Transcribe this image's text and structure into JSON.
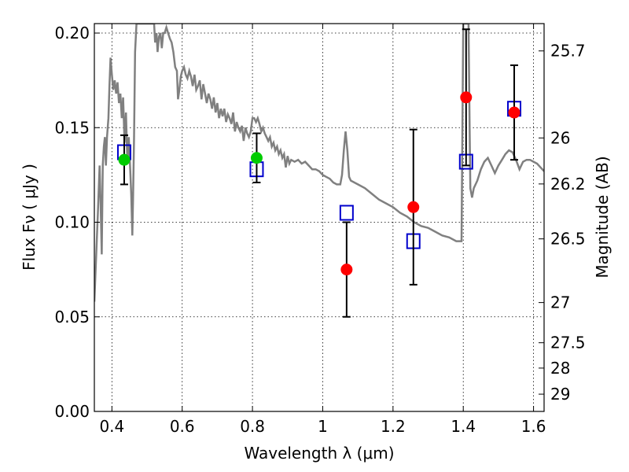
{
  "chart_data": {
    "type": "scatter",
    "xlabel": "Wavelength  λ (μm)",
    "ylabel": "Flux  Fν  ( μJy )",
    "y2label": "Magnitude (AB)",
    "xlim": [
      0.35,
      1.63
    ],
    "ylim": [
      0.0,
      0.205
    ],
    "xticks": [
      {
        "value": 0.4,
        "label": "0.4"
      },
      {
        "value": 0.6,
        "label": "0.6"
      },
      {
        "value": 0.8,
        "label": "0.8"
      },
      {
        "value": 1.0,
        "label": "1"
      },
      {
        "value": 1.2,
        "label": "1.2"
      },
      {
        "value": 1.4,
        "label": "1.4"
      },
      {
        "value": 1.6,
        "label": "1.6"
      }
    ],
    "yticks": [
      {
        "value": 0.0,
        "label": "0.00"
      },
      {
        "value": 0.05,
        "label": "0.05"
      },
      {
        "value": 0.1,
        "label": "0.10"
      },
      {
        "value": 0.15,
        "label": "0.15"
      },
      {
        "value": 0.2,
        "label": "0.20"
      }
    ],
    "y2ticks": [
      "25.7",
      "26",
      "26.2",
      "26.5",
      "27",
      "27.5",
      "28",
      "29"
    ],
    "grid": true,
    "series": [
      {
        "kind": "line",
        "color": "#808080",
        "points": [
          [
            0.35,
            0.058
          ],
          [
            0.36,
            0.105
          ],
          [
            0.365,
            0.13
          ],
          [
            0.368,
            0.11
          ],
          [
            0.371,
            0.083
          ],
          [
            0.374,
            0.13
          ],
          [
            0.377,
            0.14
          ],
          [
            0.38,
            0.145
          ],
          [
            0.383,
            0.13
          ],
          [
            0.386,
            0.145
          ],
          [
            0.39,
            0.155
          ],
          [
            0.393,
            0.172
          ],
          [
            0.396,
            0.187
          ],
          [
            0.4,
            0.178
          ],
          [
            0.404,
            0.17
          ],
          [
            0.408,
            0.175
          ],
          [
            0.412,
            0.168
          ],
          [
            0.416,
            0.174
          ],
          [
            0.42,
            0.163
          ],
          [
            0.424,
            0.168
          ],
          [
            0.428,
            0.155
          ],
          [
            0.432,
            0.166
          ],
          [
            0.436,
            0.142
          ],
          [
            0.44,
            0.158
          ],
          [
            0.444,
            0.132
          ],
          [
            0.448,
            0.145
          ],
          [
            0.452,
            0.128
          ],
          [
            0.455,
            0.115
          ],
          [
            0.458,
            0.093
          ],
          [
            0.46,
            0.112
          ],
          [
            0.463,
            0.145
          ],
          [
            0.466,
            0.19
          ],
          [
            0.47,
            0.205
          ],
          [
            0.52,
            0.205
          ],
          [
            0.523,
            0.195
          ],
          [
            0.527,
            0.2
          ],
          [
            0.53,
            0.19
          ],
          [
            0.534,
            0.198
          ],
          [
            0.538,
            0.2
          ],
          [
            0.542,
            0.192
          ],
          [
            0.546,
            0.2
          ],
          [
            0.55,
            0.2
          ],
          [
            0.555,
            0.203
          ],
          [
            0.56,
            0.2
          ],
          [
            0.565,
            0.197
          ],
          [
            0.57,
            0.195
          ],
          [
            0.575,
            0.19
          ],
          [
            0.58,
            0.182
          ],
          [
            0.585,
            0.18
          ],
          [
            0.588,
            0.165
          ],
          [
            0.592,
            0.17
          ],
          [
            0.596,
            0.177
          ],
          [
            0.6,
            0.18
          ],
          [
            0.605,
            0.182
          ],
          [
            0.61,
            0.178
          ],
          [
            0.615,
            0.176
          ],
          [
            0.62,
            0.18
          ],
          [
            0.625,
            0.177
          ],
          [
            0.63,
            0.172
          ],
          [
            0.635,
            0.178
          ],
          [
            0.64,
            0.17
          ],
          [
            0.645,
            0.172
          ],
          [
            0.65,
            0.175
          ],
          [
            0.655,
            0.165
          ],
          [
            0.66,
            0.173
          ],
          [
            0.665,
            0.168
          ],
          [
            0.67,
            0.163
          ],
          [
            0.675,
            0.168
          ],
          [
            0.68,
            0.165
          ],
          [
            0.685,
            0.16
          ],
          [
            0.69,
            0.166
          ],
          [
            0.695,
            0.158
          ],
          [
            0.7,
            0.163
          ],
          [
            0.705,
            0.155
          ],
          [
            0.71,
            0.16
          ],
          [
            0.715,
            0.156
          ],
          [
            0.72,
            0.16
          ],
          [
            0.725,
            0.153
          ],
          [
            0.73,
            0.157
          ],
          [
            0.735,
            0.155
          ],
          [
            0.74,
            0.152
          ],
          [
            0.745,
            0.158
          ],
          [
            0.75,
            0.148
          ],
          [
            0.755,
            0.153
          ],
          [
            0.76,
            0.15
          ],
          [
            0.765,
            0.148
          ],
          [
            0.77,
            0.151
          ],
          [
            0.775,
            0.143
          ],
          [
            0.78,
            0.15
          ],
          [
            0.785,
            0.147
          ],
          [
            0.79,
            0.145
          ],
          [
            0.795,
            0.148
          ],
          [
            0.8,
            0.155
          ],
          [
            0.805,
            0.155
          ],
          [
            0.81,
            0.153
          ],
          [
            0.815,
            0.155
          ],
          [
            0.82,
            0.152
          ],
          [
            0.825,
            0.148
          ],
          [
            0.83,
            0.15
          ],
          [
            0.835,
            0.147
          ],
          [
            0.84,
            0.145
          ],
          [
            0.845,
            0.143
          ],
          [
            0.85,
            0.145
          ],
          [
            0.855,
            0.14
          ],
          [
            0.86,
            0.142
          ],
          [
            0.865,
            0.138
          ],
          [
            0.87,
            0.14
          ],
          [
            0.875,
            0.136
          ],
          [
            0.88,
            0.138
          ],
          [
            0.885,
            0.134
          ],
          [
            0.89,
            0.136
          ],
          [
            0.895,
            0.129
          ],
          [
            0.9,
            0.135
          ],
          [
            0.905,
            0.131
          ],
          [
            0.91,
            0.133
          ],
          [
            0.92,
            0.132
          ],
          [
            0.93,
            0.133
          ],
          [
            0.94,
            0.131
          ],
          [
            0.95,
            0.132
          ],
          [
            0.96,
            0.13
          ],
          [
            0.97,
            0.128
          ],
          [
            0.98,
            0.128
          ],
          [
            0.99,
            0.127
          ],
          [
            1.0,
            0.125
          ],
          [
            1.01,
            0.124
          ],
          [
            1.02,
            0.123
          ],
          [
            1.03,
            0.121
          ],
          [
            1.04,
            0.12
          ],
          [
            1.05,
            0.12
          ],
          [
            1.055,
            0.125
          ],
          [
            1.06,
            0.138
          ],
          [
            1.065,
            0.148
          ],
          [
            1.07,
            0.138
          ],
          [
            1.075,
            0.124
          ],
          [
            1.08,
            0.122
          ],
          [
            1.1,
            0.12
          ],
          [
            1.12,
            0.118
          ],
          [
            1.14,
            0.115
          ],
          [
            1.16,
            0.112
          ],
          [
            1.18,
            0.11
          ],
          [
            1.2,
            0.108
          ],
          [
            1.22,
            0.105
          ],
          [
            1.24,
            0.103
          ],
          [
            1.26,
            0.1
          ],
          [
            1.28,
            0.098
          ],
          [
            1.3,
            0.097
          ],
          [
            1.32,
            0.095
          ],
          [
            1.34,
            0.093
          ],
          [
            1.36,
            0.092
          ],
          [
            1.38,
            0.09
          ],
          [
            1.395,
            0.09
          ],
          [
            1.4,
            0.205
          ],
          [
            1.415,
            0.205
          ],
          [
            1.418,
            0.15
          ],
          [
            1.42,
            0.118
          ],
          [
            1.425,
            0.113
          ],
          [
            1.43,
            0.118
          ],
          [
            1.44,
            0.122
          ],
          [
            1.45,
            0.128
          ],
          [
            1.46,
            0.132
          ],
          [
            1.47,
            0.134
          ],
          [
            1.48,
            0.13
          ],
          [
            1.49,
            0.126
          ],
          [
            1.5,
            0.13
          ],
          [
            1.51,
            0.133
          ],
          [
            1.52,
            0.136
          ],
          [
            1.53,
            0.138
          ],
          [
            1.54,
            0.137
          ],
          [
            1.55,
            0.133
          ],
          [
            1.56,
            0.128
          ],
          [
            1.57,
            0.132
          ],
          [
            1.58,
            0.133
          ],
          [
            1.59,
            0.133
          ],
          [
            1.6,
            0.132
          ],
          [
            1.61,
            0.131
          ],
          [
            1.62,
            0.129
          ],
          [
            1.63,
            0.127
          ]
        ]
      },
      {
        "kind": "model-points",
        "marker": "open-square",
        "color": "#0000cc",
        "x": [
          0.435,
          0.812,
          1.068,
          1.258,
          1.408,
          1.545
        ],
        "y": [
          0.137,
          0.128,
          0.105,
          0.09,
          0.132,
          0.16
        ]
      },
      {
        "kind": "observed-hst",
        "marker": "circle",
        "color": "#00cc00",
        "x": [
          0.435,
          0.812
        ],
        "y": [
          0.133,
          0.134
        ],
        "yerr": [
          0.013,
          0.013
        ]
      },
      {
        "kind": "observed-ir",
        "marker": "circle",
        "color": "#ff0000",
        "x": [
          1.068,
          1.258,
          1.408,
          1.545
        ],
        "y": [
          0.075,
          0.108,
          0.166,
          0.158
        ],
        "yerr": [
          0.025,
          0.041,
          0.036,
          0.025
        ]
      }
    ]
  }
}
